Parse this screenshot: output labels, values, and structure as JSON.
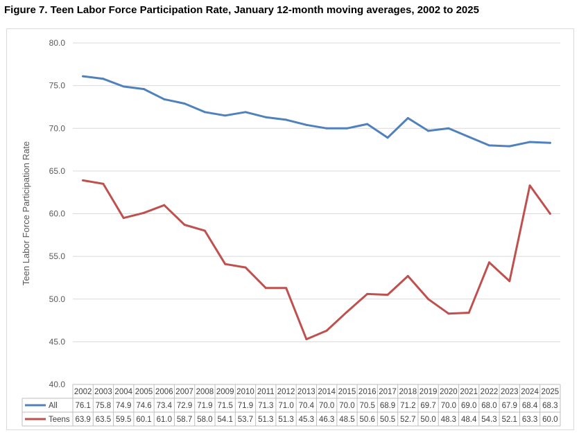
{
  "figure_title": "Figure 7. Teen Labor Force Participation Rate, January 12-month moving averages, 2002 to 2025",
  "chart_data": {
    "type": "line",
    "title": "",
    "xlabel": "",
    "ylabel": "Teen Labor Force Participation Rate",
    "ylim": [
      40.0,
      80.0
    ],
    "yticks": [
      "40.0",
      "45.0",
      "50.0",
      "55.0",
      "60.0",
      "65.0",
      "70.0",
      "75.0",
      "80.0"
    ],
    "grid": "horizontal",
    "legend": "data-table",
    "categories": [
      "2002",
      "2003",
      "2004",
      "2005",
      "2006",
      "2007",
      "2008",
      "2009",
      "2010",
      "2011",
      "2012",
      "2013",
      "2014",
      "2015",
      "2016",
      "2017",
      "2018",
      "2019",
      "2020",
      "2021",
      "2022",
      "2023",
      "2024",
      "2025"
    ],
    "series": [
      {
        "name": "All",
        "color": "#4f81bd",
        "values": [
          76.1,
          75.8,
          74.9,
          74.6,
          73.4,
          72.9,
          71.9,
          71.5,
          71.9,
          71.3,
          71.0,
          70.4,
          70.0,
          70.0,
          70.5,
          68.9,
          71.2,
          69.7,
          70.0,
          69.0,
          68.0,
          67.9,
          68.4,
          68.3
        ],
        "labels": [
          "76.1",
          "75.8",
          "74.9",
          "74.6",
          "73.4",
          "72.9",
          "71.9",
          "71.5",
          "71.9",
          "71.3",
          "71.0",
          "70.4",
          "70.0",
          "70.0",
          "70.5",
          "68.9",
          "71.2",
          "69.7",
          "70.0",
          "69.0",
          "68.0",
          "67.9",
          "68.4",
          "68.3"
        ]
      },
      {
        "name": "Teens",
        "color": "#c0504d",
        "values": [
          63.9,
          63.5,
          59.5,
          60.1,
          61.0,
          58.7,
          58.0,
          54.1,
          53.7,
          51.3,
          51.3,
          45.3,
          46.3,
          48.5,
          50.6,
          50.5,
          52.7,
          50.0,
          48.3,
          48.4,
          54.3,
          52.1,
          63.3,
          60.0
        ],
        "labels": [
          "63.9",
          "63.5",
          "59.5",
          "60.1",
          "61.0",
          "58.7",
          "58.0",
          "54.1",
          "53.7",
          "51.3",
          "51.3",
          "45.3",
          "46.3",
          "48.5",
          "50.6",
          "50.5",
          "52.7",
          "50.0",
          "48.3",
          "48.4",
          "54.3",
          "52.1",
          "63.3",
          "60.0"
        ]
      }
    ]
  }
}
